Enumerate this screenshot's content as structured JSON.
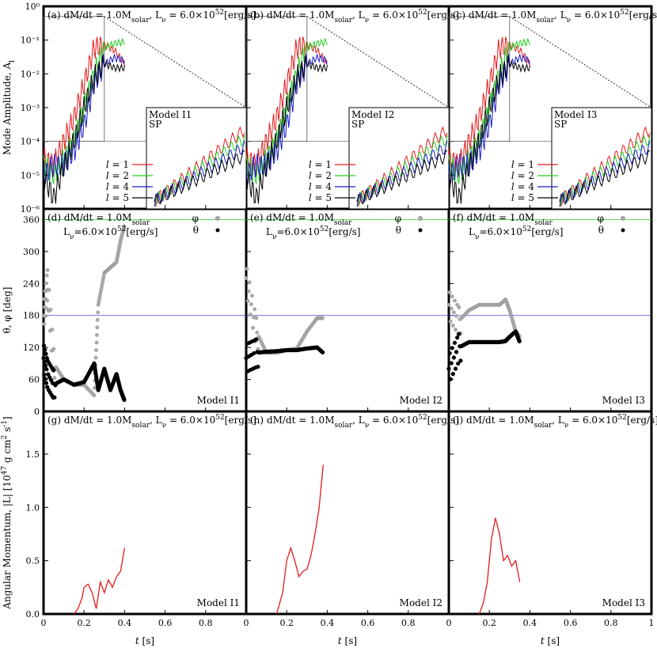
{
  "figure": {
    "ylabel_top": "Mode Amplitude, A",
    "ylabel_top_sub": "l",
    "ylabel_mid": "θ, φ [deg]",
    "ylabel_bot": "Angular Momentum, |L| [10",
    "ylabel_bot_exp": "47",
    "ylabel_bot_tail": " g cm",
    "ylabel_bot_exp2": "2",
    "ylabel_bot_tail2": " s",
    "ylabel_bot_exp3": "-1",
    "ylabel_bot_end": "]",
    "xlabel": "t [s]",
    "x_ticks": [
      "0",
      "0.2",
      "0.4",
      "0.6",
      "0.8",
      "1"
    ],
    "x_ticks_last": [
      "0",
      "0.2",
      "0.4",
      "0.6",
      "0.8",
      "1"
    ],
    "top_y_ticks": [
      "10⁻⁶",
      "10⁻⁵",
      "10⁻⁴",
      "10⁻³",
      "10⁻²",
      "10⁻¹",
      "10⁰"
    ],
    "mid_y_ticks": [
      "0",
      "60",
      "120",
      "180",
      "240",
      "300",
      "360"
    ],
    "bot_y_ticks": [
      "0.0",
      "0.5",
      "1.0",
      "1.5"
    ],
    "colors": {
      "l1": "#e41a1c",
      "l2": "#22cc22",
      "l4": "#1a1acc",
      "l5": "#000000",
      "phi": "#aaaaaa",
      "theta": "#000000",
      "line360": "#22cc22",
      "line180": "#4040e0",
      "angmom": "#e41a1c"
    }
  },
  "panels": [
    {
      "label_top": "(a) dM/dt = 1.0M",
      "label_top_sub": "solar",
      "label_top_rest": ", L",
      "label_top_nu": "ν",
      "label_top_eq": " = 6.0×10",
      "label_top_exp": "52",
      "label_top_unit": "[erg/s]",
      "inset_model": "Model I1",
      "inset_sp": "SP",
      "label_mid_a": "(d) dM/dt = 1.0M",
      "label_mid_sub": "solar",
      "label_mid_b": "L",
      "label_mid_nu": "ν",
      "label_mid_eq": "=6.0×10",
      "label_mid_exp": "52",
      "label_mid_unit": "[erg/s]",
      "model_mid": "Model I1",
      "label_bot": "(g) dM/dt = 1.0M",
      "label_bot_sub": "solar",
      "label_bot_rest": ", L",
      "label_bot_nu": "ν",
      "label_bot_eq": " = 6.0×10",
      "label_bot_exp": "52",
      "label_bot_unit": "[erg/s]",
      "model_bot": "Model I1"
    },
    {
      "label_top": "(b) dM/dt = 1.0M",
      "label_top_sub": "solar",
      "label_top_rest": ", L",
      "label_top_nu": "ν",
      "label_top_eq": " = 6.0×10",
      "label_top_exp": "52",
      "label_top_unit": "[erg/s]",
      "inset_model": "Model I2",
      "inset_sp": "SP",
      "label_mid_a": "(e) dM/dt = 1.0M",
      "label_mid_sub": "solar",
      "label_mid_b": "L",
      "label_mid_nu": "ν",
      "label_mid_eq": "=6.0×10",
      "label_mid_exp": "52",
      "label_mid_unit": "[erg/s]",
      "model_mid": "Model I2",
      "label_bot": "(h) dM/dt = 1.0M",
      "label_bot_sub": "solar",
      "label_bot_rest": ", L",
      "label_bot_nu": "ν",
      "label_bot_eq": " = 6.0×10",
      "label_bot_exp": "52",
      "label_bot_unit": "[erg/s]",
      "model_bot": "Model I2"
    },
    {
      "label_top": "(c) dM/dt = 1.0M",
      "label_top_sub": "solar",
      "label_top_rest": ", L",
      "label_top_nu": "ν",
      "label_top_eq": " = 6.0×10",
      "label_top_exp": "52",
      "label_top_unit": "[erg/s]",
      "inset_model": "Model I3",
      "inset_sp": "SP",
      "label_mid_a": "(f) dM/dt = 1.0M",
      "label_mid_sub": "solar",
      "label_mid_b": "L",
      "label_mid_nu": "ν",
      "label_mid_eq": "=6.0×10",
      "label_mid_exp": "52",
      "label_mid_unit": "[erg/s]",
      "model_mid": "Model I3",
      "label_bot": "(i) dM/dt = 1.0M",
      "label_bot_sub": "solar",
      "label_bot_rest": ", L",
      "label_bot_nu": "ν",
      "label_bot_eq": " = 6.0×10",
      "label_bot_exp": "52",
      "label_bot_unit": "[erg/s]",
      "model_bot": "Model I3"
    }
  ],
  "legend_top": [
    "l = 1",
    "l = 2",
    "l = 4",
    "l = 5"
  ],
  "legend_mid": [
    "φ",
    "θ"
  ],
  "chart_data": [
    {
      "type": "line",
      "panel": "a-c",
      "yscale": "log",
      "xlim": [
        0,
        1
      ],
      "ylim": [
        1e-06,
        1
      ],
      "series_note_names": [
        "l = 1",
        "l = 2",
        "l = 4",
        "l = 5"
      ],
      "series": [
        {
          "name": "l = 1",
          "panel": "a",
          "x": [
            0.0,
            0.05,
            0.1,
            0.15,
            0.2,
            0.25,
            0.3,
            0.35,
            0.4
          ],
          "y": [
            3e-05,
            2e-05,
            0.0001,
            0.0005,
            0.005,
            0.06,
            0.07,
            0.05,
            0.02
          ]
        },
        {
          "name": "l = 2",
          "panel": "a",
          "x": [
            0.0,
            0.05,
            0.1,
            0.15,
            0.2,
            0.25,
            0.3,
            0.35,
            0.4
          ],
          "y": [
            2e-05,
            1e-05,
            3e-05,
            0.0001,
            0.001,
            0.01,
            0.06,
            0.08,
            0.09
          ]
        },
        {
          "name": "l = 4",
          "panel": "a",
          "x": [
            0.0,
            0.05,
            0.1,
            0.15,
            0.2,
            0.25,
            0.3,
            0.35,
            0.4
          ],
          "y": [
            1e-05,
            2e-05,
            2e-05,
            5e-05,
            0.0003,
            0.005,
            0.02,
            0.03,
            0.025
          ]
        },
        {
          "name": "l = 5",
          "panel": "a",
          "x": [
            0.0,
            0.05,
            0.1,
            0.15,
            0.2,
            0.25,
            0.3,
            0.35,
            0.4
          ],
          "y": [
            1e-05,
            2e-06,
            2e-05,
            0.0001,
            0.001,
            0.008,
            0.02,
            0.015,
            0.015
          ]
        }
      ]
    },
    {
      "type": "scatter",
      "panel": "d-f",
      "xlim": [
        0,
        1
      ],
      "ylim": [
        0,
        380
      ],
      "series_names": [
        "φ",
        "θ"
      ],
      "reference_lines": [
        360,
        180
      ],
      "series": [
        {
          "name": "φ",
          "panel": "d",
          "x": [
            0.0,
            0.02,
            0.05,
            0.1,
            0.15,
            0.2,
            0.25,
            0.27,
            0.3,
            0.33,
            0.36,
            0.38,
            0.4
          ],
          "y": [
            180,
            240,
            90,
            60,
            50,
            50,
            30,
            200,
            260,
            270,
            280,
            320,
            350
          ]
        },
        {
          "name": "θ",
          "panel": "d",
          "x": [
            0.0,
            0.02,
            0.05,
            0.1,
            0.15,
            0.2,
            0.25,
            0.27,
            0.3,
            0.33,
            0.36,
            0.38,
            0.4
          ],
          "y": [
            100,
            70,
            50,
            60,
            50,
            55,
            90,
            40,
            80,
            40,
            70,
            40,
            20
          ]
        },
        {
          "name": "φ",
          "panel": "e",
          "x": [
            0.0,
            0.05,
            0.1,
            0.15,
            0.2,
            0.25,
            0.3,
            0.35,
            0.38
          ],
          "y": [
            250,
            150,
            110,
            110,
            115,
            118,
            150,
            175,
            175
          ]
        },
        {
          "name": "θ",
          "panel": "e",
          "x": [
            0.0,
            0.05,
            0.1,
            0.15,
            0.2,
            0.25,
            0.3,
            0.35,
            0.38
          ],
          "y": [
            100,
            110,
            112,
            113,
            115,
            115,
            118,
            120,
            110
          ]
        },
        {
          "name": "φ",
          "panel": "f",
          "x": [
            0.0,
            0.05,
            0.1,
            0.15,
            0.2,
            0.25,
            0.28,
            0.3,
            0.33,
            0.35
          ],
          "y": [
            200,
            170,
            190,
            200,
            200,
            200,
            210,
            190,
            150,
            140
          ]
        },
        {
          "name": "θ",
          "panel": "f",
          "x": [
            0.0,
            0.05,
            0.1,
            0.15,
            0.2,
            0.25,
            0.28,
            0.3,
            0.33,
            0.35
          ],
          "y": [
            80,
            120,
            130,
            130,
            130,
            130,
            132,
            140,
            150,
            130
          ]
        }
      ]
    },
    {
      "type": "line",
      "panel": "g-i",
      "xlim": [
        0,
        1
      ],
      "ylim": [
        0,
        1.9
      ],
      "series": [
        {
          "panel": "g",
          "x": [
            0.15,
            0.17,
            0.19,
            0.2,
            0.22,
            0.24,
            0.26,
            0.28,
            0.3,
            0.32,
            0.34,
            0.36,
            0.38,
            0.4
          ],
          "y": [
            0.0,
            0.05,
            0.15,
            0.25,
            0.28,
            0.2,
            0.05,
            0.3,
            0.2,
            0.32,
            0.25,
            0.35,
            0.4,
            0.62
          ]
        },
        {
          "panel": "h",
          "x": [
            0.15,
            0.18,
            0.2,
            0.22,
            0.24,
            0.26,
            0.28,
            0.3,
            0.32,
            0.34,
            0.36,
            0.38
          ],
          "y": [
            0.0,
            0.2,
            0.5,
            0.62,
            0.5,
            0.35,
            0.4,
            0.42,
            0.55,
            0.75,
            1.0,
            1.4
          ]
        },
        {
          "panel": "i",
          "x": [
            0.15,
            0.17,
            0.19,
            0.21,
            0.23,
            0.25,
            0.27,
            0.29,
            0.31,
            0.33,
            0.35
          ],
          "y": [
            0.0,
            0.1,
            0.3,
            0.7,
            0.9,
            0.75,
            0.5,
            0.55,
            0.45,
            0.5,
            0.3
          ]
        }
      ]
    }
  ]
}
